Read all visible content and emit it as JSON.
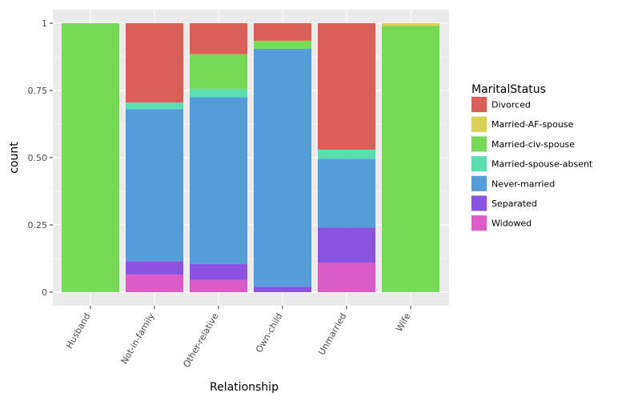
{
  "chart_data": {
    "type": "bar",
    "stacked": true,
    "normalized": true,
    "xlabel": "Relationship",
    "ylabel": "count",
    "ylim": [
      0,
      1
    ],
    "yticks": [
      0,
      0.25,
      0.5,
      0.75,
      1
    ],
    "ytick_labels": [
      "0",
      "0.25",
      "0.50",
      "0.75",
      "1"
    ],
    "categories": [
      "Husband",
      "Not-in-family",
      "Other-relative",
      "Own-child",
      "Unmarried",
      "Wife"
    ],
    "legend_title": "MaritalStatus",
    "legend_position": "right",
    "series": [
      {
        "name": "Widowed",
        "color": "#DB5BC6",
        "values": [
          0,
          0.065,
          0.045,
          0,
          0.11,
          0
        ]
      },
      {
        "name": "Separated",
        "color": "#8A53E0",
        "values": [
          0,
          0.05,
          0.06,
          0.02,
          0.13,
          0
        ]
      },
      {
        "name": "Never-married",
        "color": "#569CDA",
        "values": [
          0,
          0.565,
          0.62,
          0.885,
          0.255,
          0
        ]
      },
      {
        "name": "Married-spouse-absent",
        "color": "#5ADDB0",
        "values": [
          0,
          0.025,
          0.03,
          0,
          0.035,
          0
        ]
      },
      {
        "name": "Married-civ-spouse",
        "color": "#76DA58",
        "values": [
          1.0,
          0,
          0.13,
          0.03,
          0,
          0.99
        ]
      },
      {
        "name": "Married-AF-spouse",
        "color": "#DBCF55",
        "values": [
          0,
          0,
          0,
          0,
          0,
          0.01
        ]
      },
      {
        "name": "Divorced",
        "color": "#DB5F57",
        "values": [
          0,
          0.295,
          0.115,
          0.065,
          0.47,
          0
        ]
      }
    ],
    "legend_order": [
      "Divorced",
      "Married-AF-spouse",
      "Married-civ-spouse",
      "Married-spouse-absent",
      "Never-married",
      "Separated",
      "Widowed"
    ]
  }
}
